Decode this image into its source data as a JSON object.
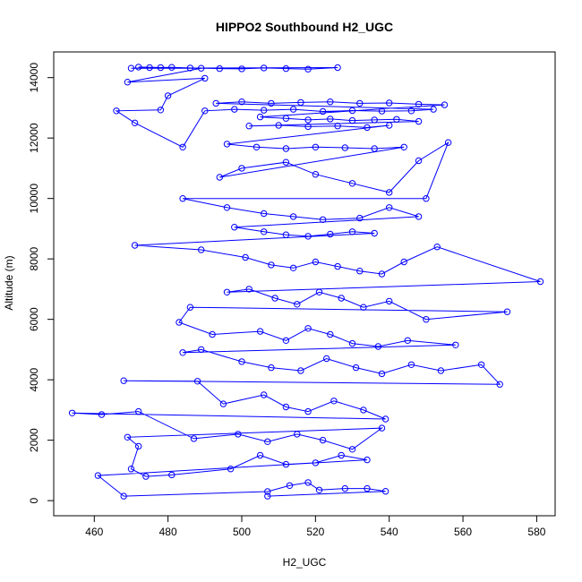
{
  "chart_data": {
    "type": "line",
    "title": "HIPPO2 Southbound H2_UGC",
    "xlabel": "H2_UGC",
    "ylabel": "Altitude (m)",
    "xlim": [
      449,
      585
    ],
    "ylim": [
      -500,
      14850
    ],
    "xticks": [
      460,
      480,
      500,
      520,
      540,
      560,
      580
    ],
    "yticks": [
      0,
      2000,
      4000,
      6000,
      8000,
      10000,
      12000,
      14000
    ],
    "xtick_labels": [
      "460",
      "480",
      "500",
      "520",
      "540",
      "560",
      "580"
    ],
    "ytick_labels": [
      "0",
      "2000",
      "4000",
      "6000",
      "8000",
      "10000",
      "12000",
      "14000"
    ],
    "grid": false,
    "legend": "none",
    "colors": {
      "series": "#0000ff",
      "axes": "#000000",
      "background": "#ffffff"
    },
    "series": [
      {
        "marker": "open-circle",
        "points": [
          [
            472,
            14350
          ],
          [
            478,
            14330
          ],
          [
            486,
            14320
          ],
          [
            494,
            14300
          ],
          [
            500,
            14290
          ],
          [
            506,
            14320
          ],
          [
            512,
            14300
          ],
          [
            518,
            14280
          ],
          [
            526,
            14330
          ],
          [
            470,
            14310
          ],
          [
            475,
            14330
          ],
          [
            481,
            14340
          ],
          [
            489,
            14310
          ],
          [
            469,
            13850
          ],
          [
            490,
            13980
          ],
          [
            480,
            13400
          ],
          [
            478,
            12930
          ],
          [
            466,
            12900
          ],
          [
            471,
            12500
          ],
          [
            484,
            11700
          ],
          [
            490,
            12900
          ],
          [
            498,
            12950
          ],
          [
            506,
            12920
          ],
          [
            514,
            12950
          ],
          [
            522,
            12880
          ],
          [
            530,
            12910
          ],
          [
            538,
            12890
          ],
          [
            546,
            12900
          ],
          [
            552,
            12950
          ],
          [
            493,
            13150
          ],
          [
            500,
            13200
          ],
          [
            508,
            13150
          ],
          [
            516,
            13180
          ],
          [
            524,
            13200
          ],
          [
            532,
            13150
          ],
          [
            540,
            13160
          ],
          [
            548,
            13120
          ],
          [
            555,
            13100
          ],
          [
            505,
            12700
          ],
          [
            512,
            12650
          ],
          [
            518,
            12600
          ],
          [
            524,
            12630
          ],
          [
            530,
            12580
          ],
          [
            536,
            12600
          ],
          [
            542,
            12620
          ],
          [
            548,
            12550
          ],
          [
            502,
            12400
          ],
          [
            510,
            12420
          ],
          [
            518,
            12380
          ],
          [
            526,
            12400
          ],
          [
            534,
            12350
          ],
          [
            540,
            12420
          ],
          [
            496,
            11800
          ],
          [
            504,
            11700
          ],
          [
            512,
            11650
          ],
          [
            520,
            11700
          ],
          [
            528,
            11680
          ],
          [
            536,
            11650
          ],
          [
            544,
            11700
          ],
          [
            494,
            10700
          ],
          [
            500,
            11000
          ],
          [
            512,
            11200
          ],
          [
            520,
            10800
          ],
          [
            530,
            10500
          ],
          [
            540,
            10200
          ],
          [
            548,
            11250
          ],
          [
            556,
            11850
          ],
          [
            550,
            10000
          ],
          [
            484,
            10000
          ],
          [
            496,
            9700
          ],
          [
            506,
            9500
          ],
          [
            514,
            9400
          ],
          [
            522,
            9300
          ],
          [
            532,
            9350
          ],
          [
            540,
            9700
          ],
          [
            548,
            9400
          ],
          [
            498,
            9050
          ],
          [
            506,
            8900
          ],
          [
            512,
            8800
          ],
          [
            518,
            8750
          ],
          [
            524,
            8820
          ],
          [
            530,
            8900
          ],
          [
            536,
            8850
          ],
          [
            471,
            8450
          ],
          [
            489,
            8300
          ],
          [
            501,
            8050
          ],
          [
            508,
            7800
          ],
          [
            514,
            7700
          ],
          [
            520,
            7900
          ],
          [
            526,
            7750
          ],
          [
            532,
            7600
          ],
          [
            538,
            7500
          ],
          [
            544,
            7900
          ],
          [
            553,
            8400
          ],
          [
            581,
            7250
          ],
          [
            496,
            6900
          ],
          [
            502,
            7000
          ],
          [
            509,
            6700
          ],
          [
            515,
            6500
          ],
          [
            521,
            6900
          ],
          [
            527,
            6700
          ],
          [
            533,
            6400
          ],
          [
            540,
            6600
          ],
          [
            550,
            6000
          ],
          [
            572,
            6250
          ],
          [
            486,
            6400
          ],
          [
            483,
            5900
          ],
          [
            492,
            5500
          ],
          [
            505,
            5600
          ],
          [
            512,
            5300
          ],
          [
            518,
            5700
          ],
          [
            524,
            5500
          ],
          [
            530,
            5200
          ],
          [
            537,
            5100
          ],
          [
            545,
            5300
          ],
          [
            558,
            5150
          ],
          [
            484,
            4900
          ],
          [
            489,
            5000
          ],
          [
            500,
            4600
          ],
          [
            508,
            4400
          ],
          [
            516,
            4300
          ],
          [
            523,
            4700
          ],
          [
            531,
            4400
          ],
          [
            538,
            4200
          ],
          [
            546,
            4500
          ],
          [
            554,
            4300
          ],
          [
            565,
            4500
          ],
          [
            570,
            3850
          ],
          [
            468,
            3970
          ],
          [
            488,
            3950
          ],
          [
            495,
            3200
          ],
          [
            506,
            3500
          ],
          [
            512,
            3100
          ],
          [
            518,
            2950
          ],
          [
            525,
            3300
          ],
          [
            533,
            3000
          ],
          [
            539,
            2700
          ],
          [
            454,
            2900
          ],
          [
            462,
            2850
          ],
          [
            472,
            2950
          ],
          [
            487,
            2050
          ],
          [
            499,
            2200
          ],
          [
            507,
            1950
          ],
          [
            515,
            2200
          ],
          [
            522,
            2000
          ],
          [
            530,
            1700
          ],
          [
            538,
            2400
          ],
          [
            469,
            2100
          ],
          [
            472,
            1800
          ],
          [
            470,
            1050
          ],
          [
            474,
            800
          ],
          [
            481,
            850
          ],
          [
            497,
            1050
          ],
          [
            505,
            1500
          ],
          [
            512,
            1200
          ],
          [
            520,
            1250
          ],
          [
            527,
            1500
          ],
          [
            534,
            1350
          ],
          [
            461,
            830
          ],
          [
            468,
            150
          ],
          [
            507,
            300
          ],
          [
            513,
            500
          ],
          [
            518,
            600
          ],
          [
            521,
            350
          ],
          [
            528,
            400
          ],
          [
            534,
            400
          ],
          [
            539,
            310
          ],
          [
            507,
            150
          ]
        ]
      }
    ]
  }
}
